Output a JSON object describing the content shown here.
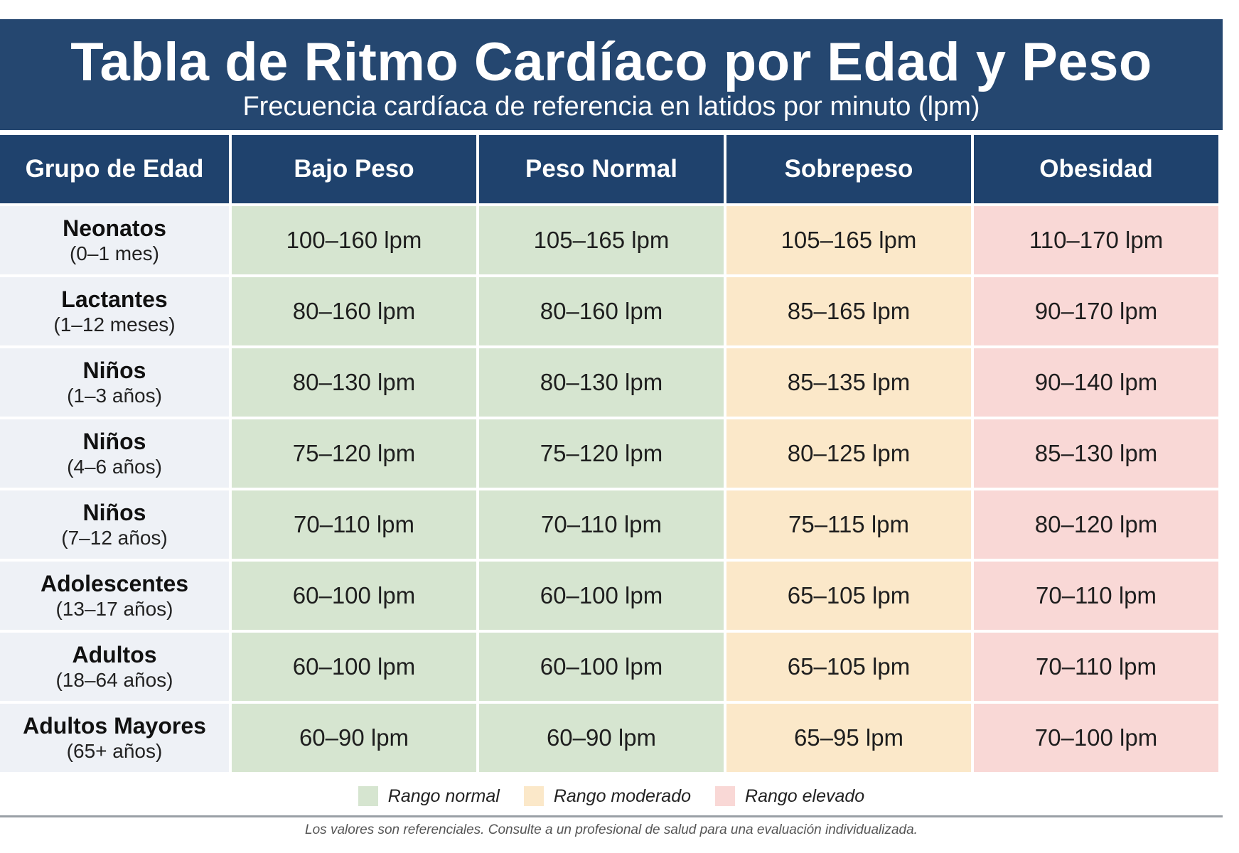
{
  "header": {
    "title": "Tabla de Ritmo Cardíaco por Edad y Peso",
    "subtitle": "Frecuencia cardíaca de referencia en latidos por minuto (lpm)"
  },
  "colors": {
    "header_bg": "#254770",
    "normal": "#d6e5d0",
    "moderate": "#fbe8c9",
    "elevated": "#f9d8d6"
  },
  "table": {
    "columns": [
      "Grupo de Edad",
      "Bajo Peso",
      "Peso Normal",
      "Sobrepeso",
      "Obesidad"
    ],
    "rows": [
      {
        "group": "Neonatos",
        "range": "(0–1 mes)",
        "values": [
          "100–160 lpm",
          "105–165 lpm",
          "105–165 lpm",
          "110–170 lpm"
        ]
      },
      {
        "group": "Lactantes",
        "range": "(1–12 meses)",
        "values": [
          "80–160 lpm",
          "80–160 lpm",
          "85–165 lpm",
          "90–170 lpm"
        ]
      },
      {
        "group": "Niños",
        "range": "(1–3 años)",
        "values": [
          "80–130 lpm",
          "80–130 lpm",
          "85–135 lpm",
          "90–140 lpm"
        ]
      },
      {
        "group": "Niños",
        "range": "(4–6 años)",
        "values": [
          "75–120 lpm",
          "75–120 lpm",
          "80–125 lpm",
          "85–130 lpm"
        ]
      },
      {
        "group": "Niños",
        "range": "(7–12 años)",
        "values": [
          "70–110 lpm",
          "70–110 lpm",
          "75–115 lpm",
          "80–120 lpm"
        ]
      },
      {
        "group": "Adolescentes",
        "range": "(13–17 años)",
        "values": [
          "60–100 lpm",
          "60–100 lpm",
          "65–105 lpm",
          "70–110 lpm"
        ]
      },
      {
        "group": "Adultos",
        "range": "(18–64 años)",
        "values": [
          "60–100 lpm",
          "60–100 lpm",
          "65–105 lpm",
          "70–110 lpm"
        ]
      },
      {
        "group": "Adultos Mayores",
        "range": "(65+ años)",
        "values": [
          "60–90 lpm",
          "60–90 lpm",
          "65–95 lpm",
          "70–100 lpm"
        ]
      }
    ]
  },
  "legend": {
    "normal": "Rango normal",
    "moderate": "Rango moderado",
    "elevated": "Rango elevado"
  },
  "footnote": "Los valores son referenciales. Consulte a un profesional de salud para una evaluación individualizada."
}
